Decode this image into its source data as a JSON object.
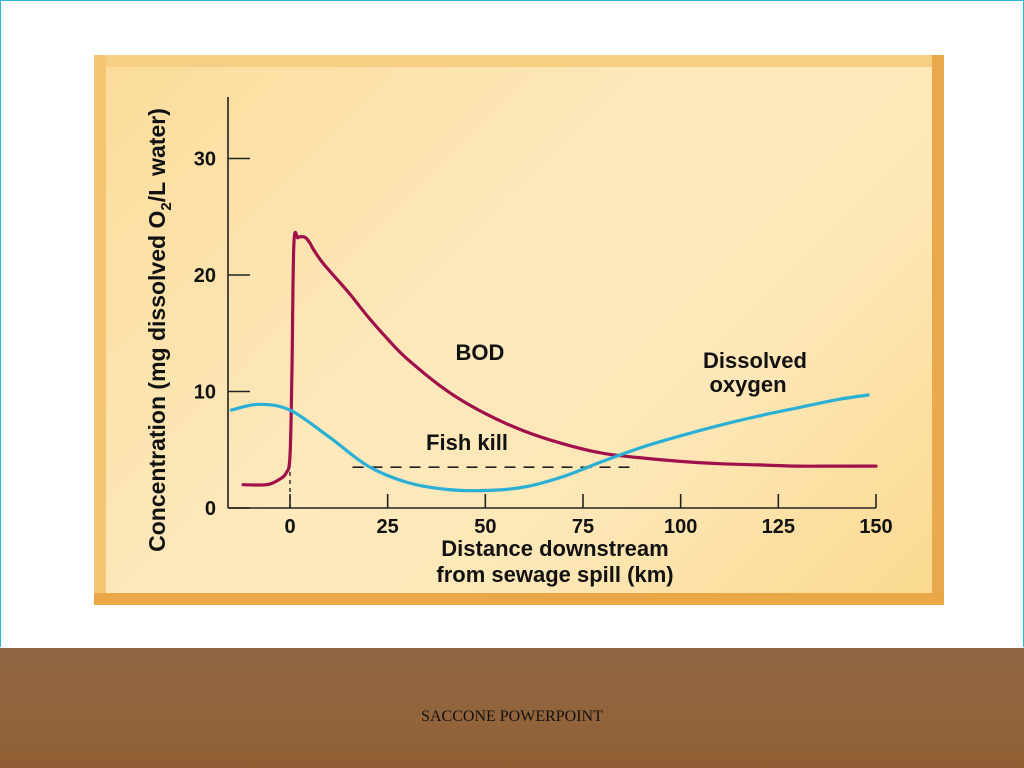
{
  "chart_data": {
    "type": "line",
    "ylabel": "Concentration (mg dissolved O2/L water)",
    "xlabel_line1": "Distance downstream",
    "xlabel_line2": "from sewage spill (km)",
    "xlim": [
      -15,
      150
    ],
    "ylim": [
      0,
      35
    ],
    "x_ticks": [
      0,
      25,
      50,
      75,
      100,
      125,
      150
    ],
    "y_ticks": [
      0,
      10,
      20,
      30
    ],
    "series": [
      {
        "name": "BOD",
        "color": "#a0104a",
        "x": [
          -12,
          -6,
          -3,
          -1,
          0,
          0.5,
          1,
          2,
          3,
          4,
          5,
          6,
          8,
          10,
          15,
          20,
          25,
          30,
          40,
          50,
          60,
          70,
          80,
          90,
          100,
          110,
          120,
          130,
          140,
          150
        ],
        "y": [
          2,
          2,
          2.4,
          3,
          4.5,
          12,
          22.7,
          23.2,
          23.3,
          23.2,
          22.8,
          22.2,
          21.2,
          20.4,
          18.5,
          16.4,
          14.5,
          12.8,
          10.1,
          8.1,
          6.6,
          5.5,
          4.7,
          4.3,
          4.0,
          3.8,
          3.7,
          3.6,
          3.6,
          3.6
        ]
      },
      {
        "name": "Dissolved oxygen",
        "color": "#2aafd6",
        "x": [
          -15,
          -8,
          0,
          10,
          20,
          30,
          40,
          50,
          60,
          70,
          80,
          90,
          100,
          110,
          120,
          130,
          140,
          148
        ],
        "y": [
          8.4,
          8.9,
          8.4,
          6.1,
          3.6,
          2.2,
          1.6,
          1.5,
          1.8,
          2.7,
          4.0,
          5.2,
          6.2,
          7.1,
          7.9,
          8.6,
          9.3,
          9.7
        ]
      }
    ],
    "annotations": {
      "bod_label": "BOD",
      "do_label_line1": "Dissolved",
      "do_label_line2": "oxygen",
      "fish_kill_label": "Fish kill",
      "fish_kill_range": [
        16,
        89
      ],
      "fish_kill_level": 3.5
    }
  },
  "footer": {
    "text": "SACCONE POWERPOINT"
  }
}
